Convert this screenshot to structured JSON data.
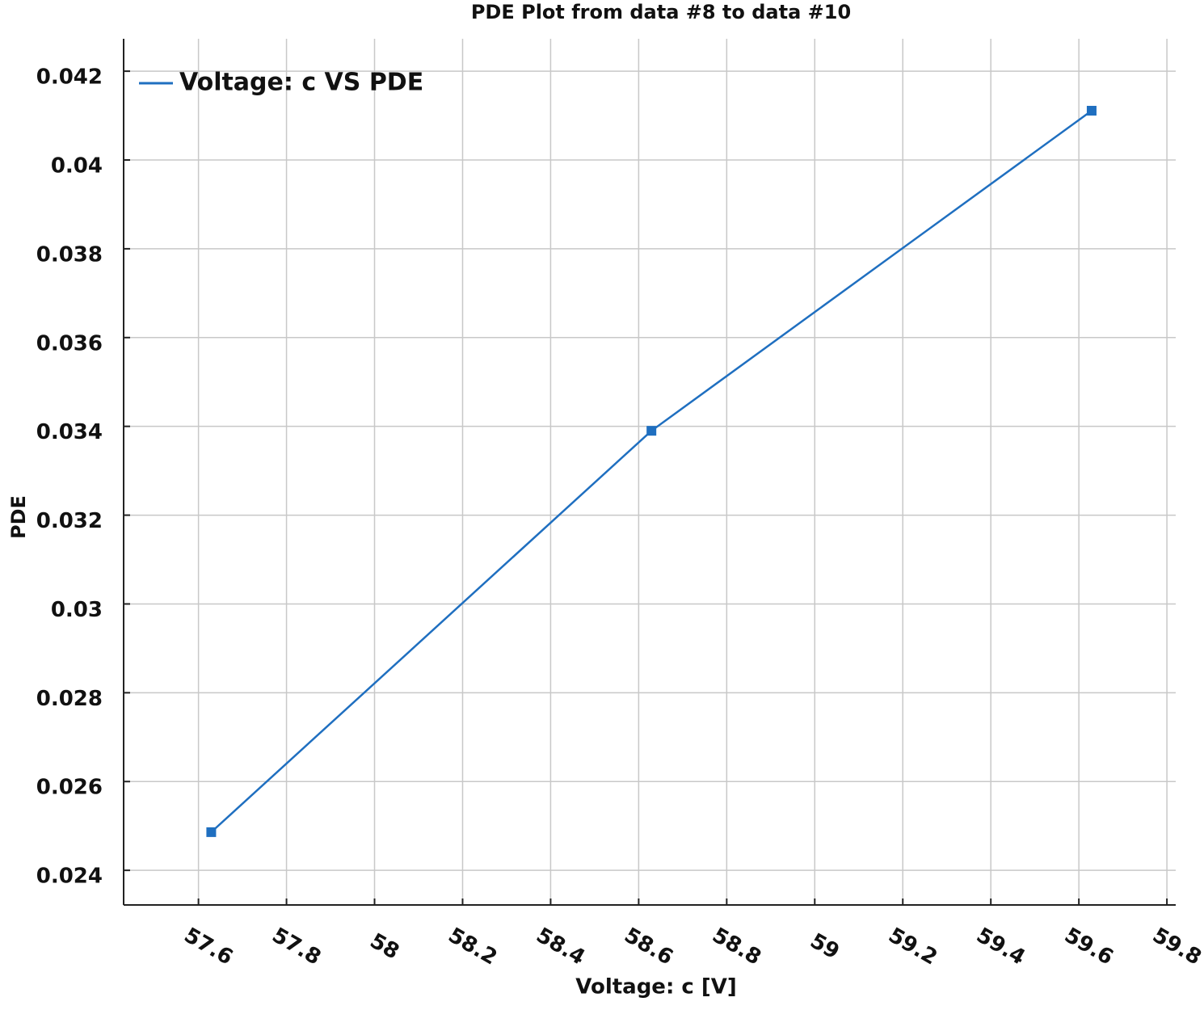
{
  "chart_data": {
    "type": "line",
    "title": "PDE Plot from data #8 to data #10",
    "x_label": "Voltage: c [V]",
    "y_label": "PDE",
    "x": [
      57.629,
      58.629,
      59.629
    ],
    "series": [
      {
        "name": "Voltage: c VS PDE",
        "color": "#1f6fc0",
        "values": [
          0.02486,
          0.0339,
          0.04111
        ]
      }
    ],
    "xlim": [
      57.43,
      59.82
    ],
    "xticks": [
      57.6,
      57.8,
      58,
      58.2,
      58.4,
      58.6,
      58.8,
      59,
      59.2,
      59.4,
      59.6,
      59.8
    ],
    "ylim": [
      0.02322,
      0.04273
    ],
    "yticks": [
      0.024,
      0.026,
      0.028,
      0.03,
      0.032,
      0.034,
      0.036,
      0.038,
      0.04,
      0.042
    ],
    "grid": true,
    "legend": "top-left"
  }
}
